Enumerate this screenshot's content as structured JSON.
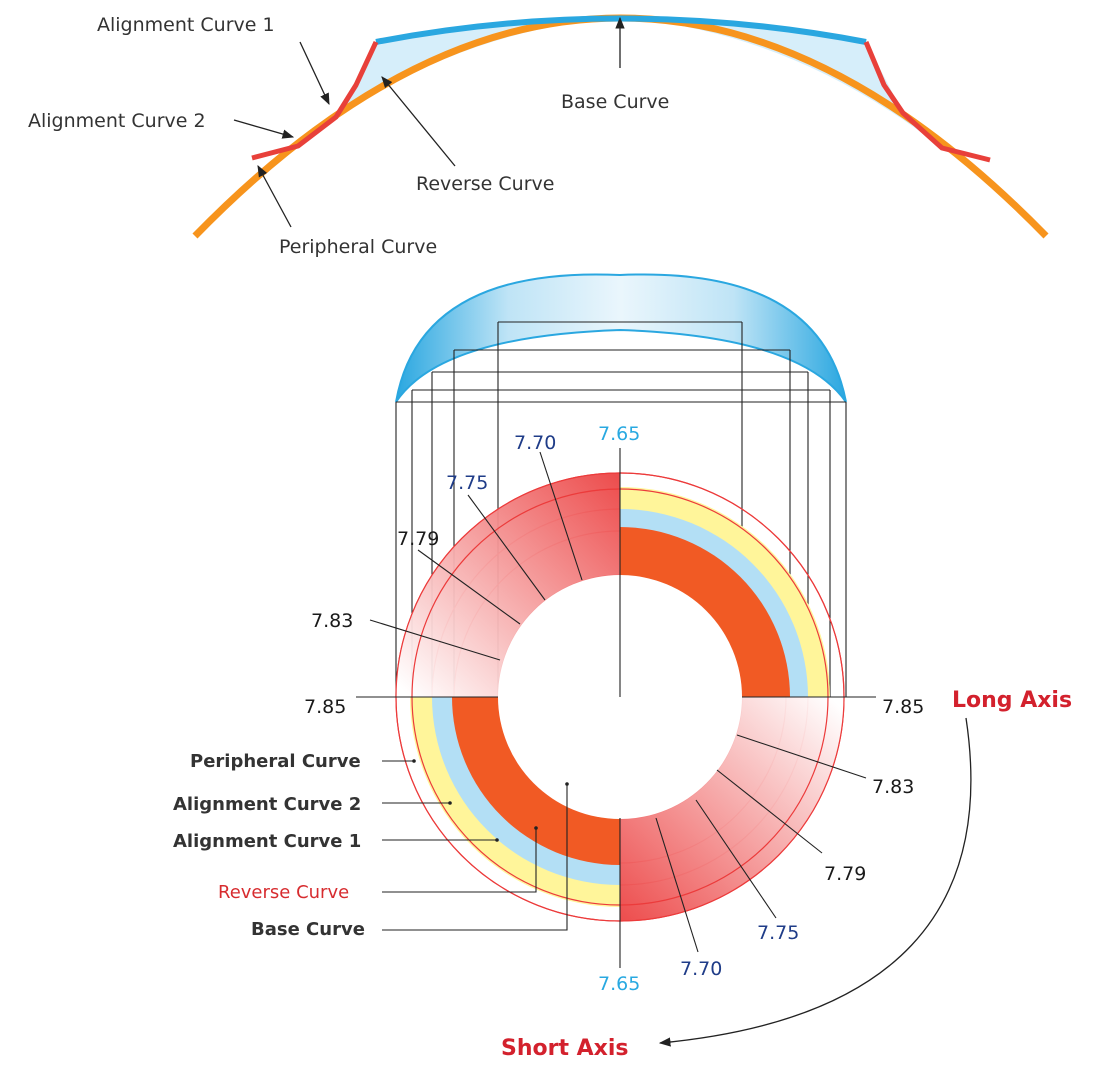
{
  "colors": {
    "cornea": "#f7941d",
    "lens_back": "#2aa7e0",
    "lens_fill": "#d6eefa",
    "alignment_red": "#e8403a",
    "reverse_red": "#d72c2f",
    "zone_orange": "#f15a24",
    "zone_blue": "#b3dff5",
    "zone_yellow": "#fff59a",
    "ring_red": "#ec3b3b",
    "navy_number": "#1f3c88",
    "cyan_number": "#29a9e1",
    "axis_red": "#d3212d"
  },
  "profile": {
    "alignment_curve_1": "Alignment Curve 1",
    "alignment_curve_2": "Alignment Curve 2",
    "reverse_curve": "Reverse Curve",
    "base_curve": "Base Curve",
    "peripheral_curve": "Peripheral Curve"
  },
  "zones": {
    "peripheral_curve": "Peripheral Curve",
    "alignment_curve_2": "Alignment Curve 2",
    "alignment_curve_1": "Alignment Curve 1",
    "reverse_curve": "Reverse Curve",
    "base_curve": "Base Curve"
  },
  "values_top": {
    "v765": "7.65",
    "v770": "7.70",
    "v775": "7.75",
    "v779": "7.79",
    "v783": "7.83",
    "v785_left": "7.85",
    "v785_right": "7.85"
  },
  "values_bottom": {
    "v783": "7.83",
    "v779": "7.79",
    "v775": "7.75",
    "v770": "7.70",
    "v765": "7.65"
  },
  "axes": {
    "long": "Long Axis",
    "short": "Short Axis"
  }
}
